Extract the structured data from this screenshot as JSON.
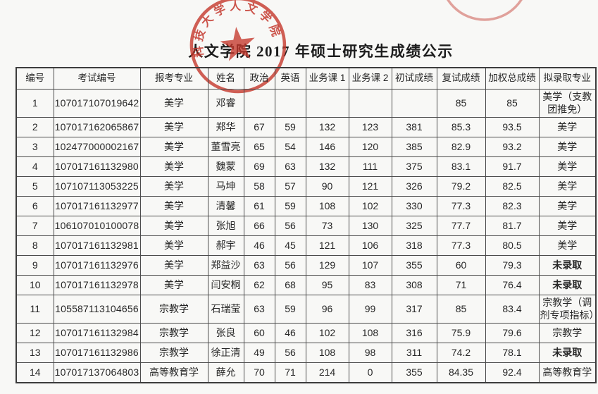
{
  "page": {
    "title": "人文学院 2017 年硕士研究生成绩公示"
  },
  "seal": {
    "text": "科技大学人文学院",
    "color": "#c23a2c"
  },
  "table": {
    "headers": [
      "编号",
      "考试编号",
      "报考专业",
      "姓名",
      "政治",
      "英语",
      "业务课 1",
      "业务课 2",
      "初试成绩",
      "复试成绩",
      "加权总成绩",
      "拟录取专业"
    ],
    "rows": [
      {
        "no": "1",
        "exam": "107017107019642",
        "major": "美学",
        "name": "邓睿",
        "politics": "",
        "english": "",
        "course1": "",
        "course2": "",
        "initial": "",
        "retest": "85",
        "weighted": "85",
        "admit": "美学（支教团推免）",
        "admit_bold": false
      },
      {
        "no": "2",
        "exam": "107017162065867",
        "major": "美学",
        "name": "郑华",
        "politics": "67",
        "english": "59",
        "course1": "132",
        "course2": "123",
        "initial": "381",
        "retest": "85.3",
        "weighted": "93.5",
        "admit": "美学",
        "admit_bold": false
      },
      {
        "no": "3",
        "exam": "102477000002167",
        "major": "美学",
        "name": "董雪亮",
        "politics": "65",
        "english": "54",
        "course1": "146",
        "course2": "120",
        "initial": "385",
        "retest": "82.9",
        "weighted": "93.2",
        "admit": "美学",
        "admit_bold": false
      },
      {
        "no": "4",
        "exam": "107017161132980",
        "major": "美学",
        "name": "魏蒙",
        "politics": "69",
        "english": "63",
        "course1": "132",
        "course2": "111",
        "initial": "375",
        "retest": "83.1",
        "weighted": "91.7",
        "admit": "美学",
        "admit_bold": false
      },
      {
        "no": "5",
        "exam": "107107113053225",
        "major": "美学",
        "name": "马坤",
        "politics": "58",
        "english": "57",
        "course1": "90",
        "course2": "121",
        "initial": "326",
        "retest": "79.2",
        "weighted": "82.5",
        "admit": "美学",
        "admit_bold": false
      },
      {
        "no": "6",
        "exam": "107017161132977",
        "major": "美学",
        "name": "清馨",
        "politics": "61",
        "english": "59",
        "course1": "108",
        "course2": "102",
        "initial": "330",
        "retest": "77.3",
        "weighted": "82.3",
        "admit": "美学",
        "admit_bold": false
      },
      {
        "no": "7",
        "exam": "106107010100078",
        "major": "美学",
        "name": "张旭",
        "politics": "66",
        "english": "56",
        "course1": "73",
        "course2": "130",
        "initial": "325",
        "retest": "77.7",
        "weighted": "81.7",
        "admit": "美学",
        "admit_bold": false
      },
      {
        "no": "8",
        "exam": "107017161132981",
        "major": "美学",
        "name": "郝宇",
        "politics": "46",
        "english": "45",
        "course1": "121",
        "course2": "106",
        "initial": "318",
        "retest": "77.3",
        "weighted": "80.5",
        "admit": "美学",
        "admit_bold": false
      },
      {
        "no": "9",
        "exam": "107017161132976",
        "major": "美学",
        "name": "郑益沙",
        "politics": "63",
        "english": "56",
        "course1": "129",
        "course2": "107",
        "initial": "355",
        "retest": "60",
        "weighted": "79.3",
        "admit": "未录取",
        "admit_bold": true
      },
      {
        "no": "10",
        "exam": "107017161132978",
        "major": "美学",
        "name": "闫安桐",
        "politics": "62",
        "english": "68",
        "course1": "95",
        "course2": "83",
        "initial": "308",
        "retest": "71",
        "weighted": "76.4",
        "admit": "未录取",
        "admit_bold": true
      },
      {
        "no": "11",
        "exam": "105587113104656",
        "major": "宗教学",
        "name": "石瑞莹",
        "politics": "63",
        "english": "59",
        "course1": "96",
        "course2": "99",
        "initial": "317",
        "retest": "85",
        "weighted": "83.4",
        "admit": "宗教学（调剂专项指标）",
        "admit_bold": false
      },
      {
        "no": "12",
        "exam": "107017161132984",
        "major": "宗教学",
        "name": "张良",
        "politics": "60",
        "english": "46",
        "course1": "102",
        "course2": "108",
        "initial": "316",
        "retest": "75.9",
        "weighted": "79.6",
        "admit": "宗教学",
        "admit_bold": false
      },
      {
        "no": "13",
        "exam": "107017161132986",
        "major": "宗教学",
        "name": "徐正清",
        "politics": "49",
        "english": "56",
        "course1": "108",
        "course2": "98",
        "initial": "311",
        "retest": "74.2",
        "weighted": "78.1",
        "admit": "未录取",
        "admit_bold": true
      },
      {
        "no": "14",
        "exam": "107017137064803",
        "major": "高等教育学",
        "name": "薛允",
        "politics": "70",
        "english": "71",
        "course1": "214",
        "course2": "0",
        "initial": "355",
        "retest": "84.35",
        "weighted": "92.4",
        "admit": "高等教育学",
        "admit_bold": false
      }
    ]
  }
}
